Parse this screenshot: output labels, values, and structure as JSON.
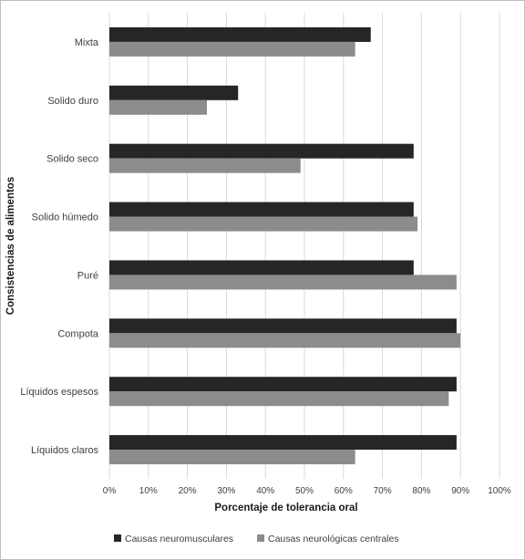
{
  "chart_data": {
    "type": "bar",
    "orientation": "horizontal",
    "categories": [
      "Mixta",
      "Solido duro",
      "Solido seco",
      "Solido húmedo",
      "Puré",
      "Compota",
      "Líquidos espesos",
      "Líquidos claros"
    ],
    "series": [
      {
        "name": "Causas neuromusculares",
        "color": "#262626",
        "values": [
          67,
          33,
          78,
          78,
          78,
          89,
          89,
          89
        ]
      },
      {
        "name": "Causas neurológicas centrales",
        "color": "#8c8c8c",
        "values": [
          63,
          25,
          49,
          79,
          89,
          90,
          87,
          63
        ]
      }
    ],
    "xlabel": "Porcentaje de tolerancia oral",
    "ylabel": "Consistencias de alimentos",
    "xlim": [
      0,
      100
    ],
    "xticks": [
      "0%",
      "10%",
      "20%",
      "30%",
      "40%",
      "50%",
      "60%",
      "70%",
      "80%",
      "90%",
      "100%"
    ],
    "grid": "vertical",
    "legend": "bottom"
  }
}
